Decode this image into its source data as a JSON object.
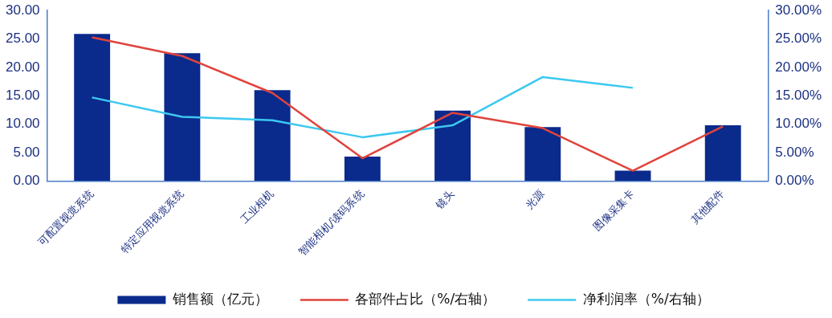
{
  "chart_data": {
    "type": "bar",
    "categories": [
      "可配置视觉系统",
      "特定应用视觉系统",
      "工业相机",
      "智能相机/读码系统",
      "镜头",
      "光源",
      "图像采集卡",
      "其他配件"
    ],
    "series": [
      {
        "name": "销售额（亿元）",
        "color": "#0a2a8c",
        "values": [
          25.9,
          22.5,
          16.0,
          4.3,
          12.4,
          9.5,
          1.8,
          9.8
        ]
      },
      {
        "name": "各部件占比（%/右轴）",
        "type": "line",
        "axis": "y2",
        "color": "#e0443c",
        "values": [
          25.3,
          22.0,
          15.5,
          4.0,
          12.0,
          9.3,
          1.8,
          9.6
        ]
      },
      {
        "name": "净利润率（%/右轴）",
        "type": "line",
        "axis": "y2",
        "color": "#3cc8f0",
        "values": [
          14.7,
          11.3,
          10.7,
          7.7,
          9.8,
          18.3,
          16.4,
          null
        ]
      }
    ],
    "ylim": [
      0,
      30
    ],
    "yticks": [
      {
        "value": 0,
        "label": "0.00"
      },
      {
        "value": 5,
        "label": "5.00"
      },
      {
        "value": 10,
        "label": "10.00"
      },
      {
        "value": 15,
        "label": "15.00"
      },
      {
        "value": 20,
        "label": "20.00"
      },
      {
        "value": 25,
        "label": "25.00"
      },
      {
        "value": 30,
        "label": "30.00"
      }
    ],
    "y2lim": [
      0,
      30
    ],
    "y2ticks": [
      {
        "value": 0,
        "label": "0.00%"
      },
      {
        "value": 5,
        "label": "5.00%"
      },
      {
        "value": 10,
        "label": "10.00%"
      },
      {
        "value": 15,
        "label": "15.00%"
      },
      {
        "value": 20,
        "label": "20.00%"
      },
      {
        "value": 25,
        "label": "25.00%"
      },
      {
        "value": 30,
        "label": "30.00%"
      }
    ],
    "grid": false,
    "legend": "bottom",
    "marker": "none",
    "line_style": "solid"
  }
}
